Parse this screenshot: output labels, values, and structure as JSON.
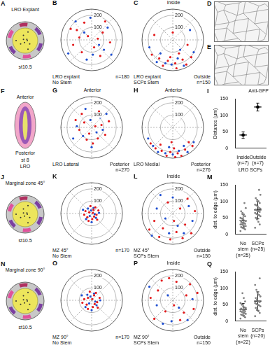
{
  "schematics": [
    {
      "panel": "A",
      "title": "LRO Explant",
      "stage": "st10.5"
    },
    {
      "panel": "F",
      "top": "Anterior",
      "bottom": "Posterior",
      "stage": "st 8",
      "title": "LRO"
    },
    {
      "panel": "J",
      "title": "Marginal zone 45°",
      "stage": "st10.5"
    },
    {
      "panel": "N",
      "title": "Marginal zone 90°",
      "stage": "st10.5"
    }
  ],
  "images": [
    {
      "panel": "D"
    },
    {
      "panel": "E"
    }
  ],
  "chart_data": [
    {
      "panel": "B",
      "type": "scatter",
      "xlim": [
        -250,
        250
      ],
      "ylim": [
        -250,
        250
      ],
      "rticks": [
        100,
        200
      ],
      "tick_labels": false,
      "grid": true,
      "annotations": {
        "corner": [
          "LRO explant",
          "No Stem"
        ],
        "count": "n=180"
      },
      "series": [
        {
          "color": "#e31a1c",
          "x": [
            -120,
            -60,
            30,
            90,
            150,
            -150,
            -80,
            20,
            70,
            -30,
            110,
            -170,
            50,
            -100
          ],
          "y": [
            80,
            140,
            110,
            60,
            -20,
            -40,
            -100,
            -60,
            -130,
            30,
            150,
            90,
            10,
            20
          ]
        },
        {
          "color": "#1f4fd1",
          "x": [
            -40,
            130,
            -190,
            60,
            -10,
            160,
            -130,
            10,
            100,
            -60
          ],
          "y": [
            -160,
            100,
            -110,
            -40,
            180,
            -120,
            150,
            -120,
            -80,
            60
          ]
        }
      ]
    },
    {
      "panel": "C",
      "type": "scatter",
      "xlim": [
        -250,
        250
      ],
      "ylim": [
        -250,
        250
      ],
      "rticks": [
        100,
        200
      ],
      "tick_labels": false,
      "grid": true,
      "annotations": {
        "top": "Inside",
        "bottom": "Outside",
        "corner": [
          "LRO explant",
          "SCPs Stem"
        ],
        "count": "n=150"
      },
      "series": [
        {
          "color": "#e31a1c",
          "x": [
            -40,
            20,
            80,
            -110,
            150,
            -170,
            50,
            -20,
            110,
            -80,
            0,
            -150,
            120,
            30
          ],
          "y": [
            -170,
            -190,
            -160,
            -150,
            -140,
            -120,
            -110,
            -140,
            -200,
            -210,
            60,
            40,
            -40,
            -230
          ]
        },
        {
          "color": "#1f4fd1",
          "x": [
            -60,
            40,
            -130,
            170,
            90,
            -10,
            -190,
            60,
            140,
            -100
          ],
          "y": [
            -190,
            -150,
            -180,
            -100,
            -210,
            -200,
            -60,
            -80,
            80,
            -110
          ]
        }
      ]
    },
    {
      "panel": "G",
      "type": "scatter",
      "xlim": [
        -250,
        250
      ],
      "ylim": [
        -250,
        250
      ],
      "rticks": [
        100,
        200
      ],
      "tick_labels": false,
      "grid": true,
      "annotations": {
        "top": "Anterior",
        "bottom": "Posterior",
        "corner": [
          "LRO Lateral"
        ],
        "count": "n=270"
      },
      "series": [
        {
          "color": "#e31a1c",
          "x": [
            -60,
            20,
            80,
            -20,
            50,
            -100,
            110,
            -80,
            10,
            140,
            -40,
            60,
            -130,
            30
          ],
          "y": [
            40,
            90,
            20,
            -50,
            -90,
            -20,
            -60,
            110,
            -130,
            50,
            -100,
            130,
            60,
            10
          ]
        },
        {
          "color": "#1f4fd1",
          "x": [
            -10,
            90,
            -70,
            40,
            -120,
            70,
            0,
            -50,
            120,
            -150
          ],
          "y": [
            60,
            -20,
            -70,
            -40,
            10,
            80,
            -160,
            150,
            110,
            -90
          ]
        }
      ]
    },
    {
      "panel": "H",
      "type": "scatter",
      "xlim": [
        -250,
        250
      ],
      "ylim": [
        -250,
        250
      ],
      "rticks": [
        100,
        200
      ],
      "tick_labels": false,
      "grid": true,
      "annotations": {
        "top": "Anterior",
        "bottom": "Posterior",
        "corner": [
          "LRO Medial"
        ],
        "count": "n=276"
      },
      "series": [
        {
          "color": "#e31a1c",
          "x": [
            -20,
            40,
            -90,
            100,
            -140,
            160,
            10,
            -50,
            70,
            -180,
            130,
            -100,
            20,
            -10
          ],
          "y": [
            -200,
            -210,
            -190,
            -180,
            -170,
            -150,
            -170,
            -230,
            -230,
            -130,
            -120,
            -140,
            -240,
            -120
          ]
        },
        {
          "color": "#1f4fd1",
          "x": [
            -60,
            50,
            -120,
            120,
            0,
            -160,
            170,
            -30,
            90,
            -200
          ],
          "y": [
            -210,
            -190,
            -200,
            -200,
            -220,
            -150,
            -120,
            -160,
            -150,
            -90
          ]
        }
      ]
    },
    {
      "panel": "I",
      "type": "dot",
      "categories": [
        "Inside (n=7)",
        "Outside (n=7)"
      ],
      "values": [
        40,
        125
      ],
      "error": [
        10,
        12
      ],
      "color": "#000000",
      "ylabel": "Distance (µm)",
      "xlabel": "LRO SCPs",
      "annotations": {
        "top": "Anti-GFP"
      },
      "ylim": [
        0,
        150
      ],
      "yticks": [
        0,
        50,
        100,
        150
      ]
    },
    {
      "panel": "K",
      "type": "scatter",
      "xlim": [
        -250,
        250
      ],
      "ylim": [
        -250,
        250
      ],
      "rticks": [
        100,
        200
      ],
      "tick_labels": false,
      "grid": true,
      "annotations": {
        "corner": [
          "MZ 45°",
          "No Stem"
        ],
        "count": "n=170"
      },
      "series": [
        {
          "color": "#e31a1c",
          "x": [
            -20,
            15,
            40,
            -35,
            5,
            -50,
            30,
            -10,
            55,
            -25,
            20,
            -60,
            10,
            45
          ],
          "y": [
            10,
            30,
            -10,
            -30,
            -45,
            20,
            50,
            60,
            25,
            -60,
            -25,
            -10,
            5,
            -50
          ]
        },
        {
          "color": "#1f4fd1",
          "x": [
            -5,
            25,
            -30,
            35,
            -15,
            60,
            -45,
            0,
            15,
            -70
          ],
          "y": [
            25,
            -5,
            40,
            -35,
            -20,
            5,
            -45,
            -70,
            45,
            30
          ]
        }
      ]
    },
    {
      "panel": "L",
      "type": "scatter",
      "xlim": [
        -250,
        250
      ],
      "ylim": [
        -250,
        250
      ],
      "rticks": [
        100,
        200
      ],
      "tick_labels": false,
      "grid": true,
      "annotations": {
        "top": "Inside",
        "bottom": "Outside",
        "corner": [
          "MZ 45°",
          "SCPs Stem"
        ],
        "count": "n=150"
      },
      "series": [
        {
          "color": "#e31a1c",
          "x": [
            -80,
            30,
            100,
            -150,
            60,
            -40,
            150,
            -110,
            10,
            180,
            -190,
            80,
            -20,
            120
          ],
          "y": [
            -120,
            -150,
            -90,
            -60,
            40,
            90,
            -160,
            -190,
            -60,
            20,
            -130,
            -200,
            -210,
            120
          ]
        },
        {
          "color": "#1f4fd1",
          "x": [
            -60,
            40,
            -130,
            160,
            0,
            -170,
            90,
            -30,
            130,
            -100
          ],
          "y": [
            -40,
            -100,
            40,
            -60,
            130,
            -180,
            -160,
            -160,
            60,
            150
          ]
        }
      ]
    },
    {
      "panel": "M",
      "type": "strip",
      "categories": [
        "No stem (n=25)",
        "SCPs (n=25)"
      ],
      "color": "#808080",
      "values": [
        [
          10,
          15,
          18,
          20,
          22,
          25,
          25,
          28,
          30,
          30,
          32,
          35,
          35,
          38,
          40,
          42,
          45,
          48,
          50,
          55,
          60,
          65,
          70,
          80,
          95
        ],
        [
          20,
          30,
          38,
          45,
          50,
          55,
          58,
          60,
          62,
          65,
          68,
          70,
          72,
          75,
          78,
          80,
          85,
          88,
          90,
          95,
          100,
          105,
          110,
          120,
          135
        ]
      ],
      "mean": [
        41,
        74
      ],
      "sd": [
        20,
        27
      ],
      "ylabel": "dist. to edge (µm)",
      "ylim": [
        0,
        150
      ],
      "yticks": [
        0,
        50,
        100,
        150
      ]
    },
    {
      "panel": "O",
      "type": "scatter",
      "xlim": [
        -250,
        250
      ],
      "ylim": [
        -250,
        250
      ],
      "rticks": [
        100,
        200
      ],
      "tick_labels": false,
      "grid": true,
      "annotations": {
        "corner": [
          "MZ 90°",
          "No Stem"
        ],
        "count": "n=170"
      },
      "series": [
        {
          "color": "#e31a1c",
          "x": [
            -30,
            20,
            45,
            -40,
            10,
            -60,
            35,
            -15,
            65,
            -30,
            25,
            -75,
            5,
            50
          ],
          "y": [
            20,
            40,
            -15,
            -35,
            -55,
            10,
            60,
            70,
            20,
            -70,
            -30,
            -20,
            10,
            -60
          ]
        },
        {
          "color": "#1f4fd1",
          "x": [
            -10,
            30,
            -35,
            40,
            -20,
            70,
            -50,
            0,
            20,
            -80
          ],
          "y": [
            30,
            -10,
            45,
            -40,
            -25,
            0,
            -55,
            -80,
            55,
            40
          ]
        }
      ]
    },
    {
      "panel": "P",
      "type": "scatter",
      "xlim": [
        -250,
        250
      ],
      "ylim": [
        -250,
        250
      ],
      "rticks": [
        100,
        200
      ],
      "tick_labels": false,
      "grid": true,
      "annotations": {
        "top": "Inside",
        "bottom": "Outside",
        "corner": [
          "MZ 90°",
          "SCPs Stem"
        ],
        "count": "n=150"
      },
      "series": [
        {
          "color": "#e31a1c",
          "x": [
            -120,
            30,
            110,
            -60,
            170,
            -180,
            60,
            -30,
            140,
            -150,
            10,
            90,
            -90,
            200
          ],
          "y": [
            80,
            150,
            40,
            -90,
            -70,
            20,
            -160,
            180,
            130,
            -150,
            -40,
            -100,
            160,
            60
          ]
        },
        {
          "color": "#1f4fd1",
          "x": [
            -40,
            80,
            -130,
            120,
            -10,
            160,
            -190,
            50,
            -80,
            20
          ],
          "y": [
            40,
            90,
            -40,
            -160,
            -170,
            10,
            110,
            -60,
            -190,
            210
          ]
        }
      ]
    },
    {
      "panel": "Q",
      "type": "strip",
      "categories": [
        "No stem (n=22)",
        "SCPs (n=20)"
      ],
      "color": "#808080",
      "values": [
        [
          8,
          12,
          15,
          18,
          20,
          22,
          25,
          25,
          28,
          30,
          30,
          33,
          35,
          38,
          40,
          42,
          45,
          50,
          55,
          60,
          70,
          85
        ],
        [
          15,
          25,
          30,
          35,
          40,
          45,
          48,
          50,
          52,
          55,
          58,
          60,
          65,
          70,
          75,
          80,
          85,
          95,
          110,
          130
        ]
      ],
      "mean": [
        36,
        61
      ],
      "sd": [
        18,
        28
      ],
      "ylabel": "dist. to edge (µm)",
      "ylim": [
        0,
        150
      ],
      "yticks": [
        0,
        50,
        100,
        150
      ]
    }
  ]
}
